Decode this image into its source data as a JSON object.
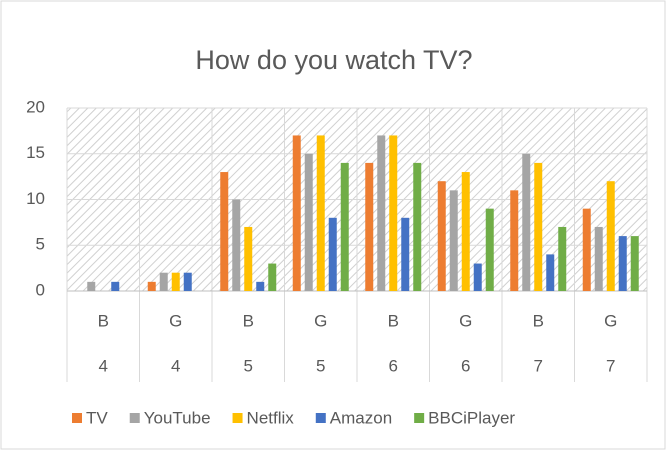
{
  "chart_data": {
    "type": "bar",
    "title": "How do you watch TV?",
    "categories": [
      "B",
      "G",
      "B",
      "G",
      "B",
      "G",
      "B",
      "G"
    ],
    "category_groups": [
      "4",
      "4",
      "5",
      "5",
      "6",
      "6",
      "7",
      "7"
    ],
    "series": [
      {
        "name": "TV",
        "color": "#ed7d31",
        "values": [
          0,
          1,
          13,
          17,
          14,
          12,
          11,
          9
        ]
      },
      {
        "name": "YouTube",
        "color": "#a5a5a5",
        "values": [
          1,
          2,
          10,
          15,
          17,
          11,
          15,
          7
        ]
      },
      {
        "name": "Netflix",
        "color": "#ffc000",
        "values": [
          0,
          2,
          7,
          17,
          17,
          13,
          14,
          12
        ]
      },
      {
        "name": "Amazon",
        "color": "#4472c4",
        "values": [
          1,
          2,
          1,
          8,
          8,
          3,
          4,
          6
        ]
      },
      {
        "name": "BBCiPlayer",
        "color": "#70ad47",
        "values": [
          0,
          0,
          3,
          14,
          14,
          9,
          7,
          6
        ]
      }
    ],
    "ylim": [
      0,
      20
    ],
    "yticks": [
      0,
      5,
      10,
      15,
      20
    ],
    "grid": true,
    "legend": "bottom"
  }
}
